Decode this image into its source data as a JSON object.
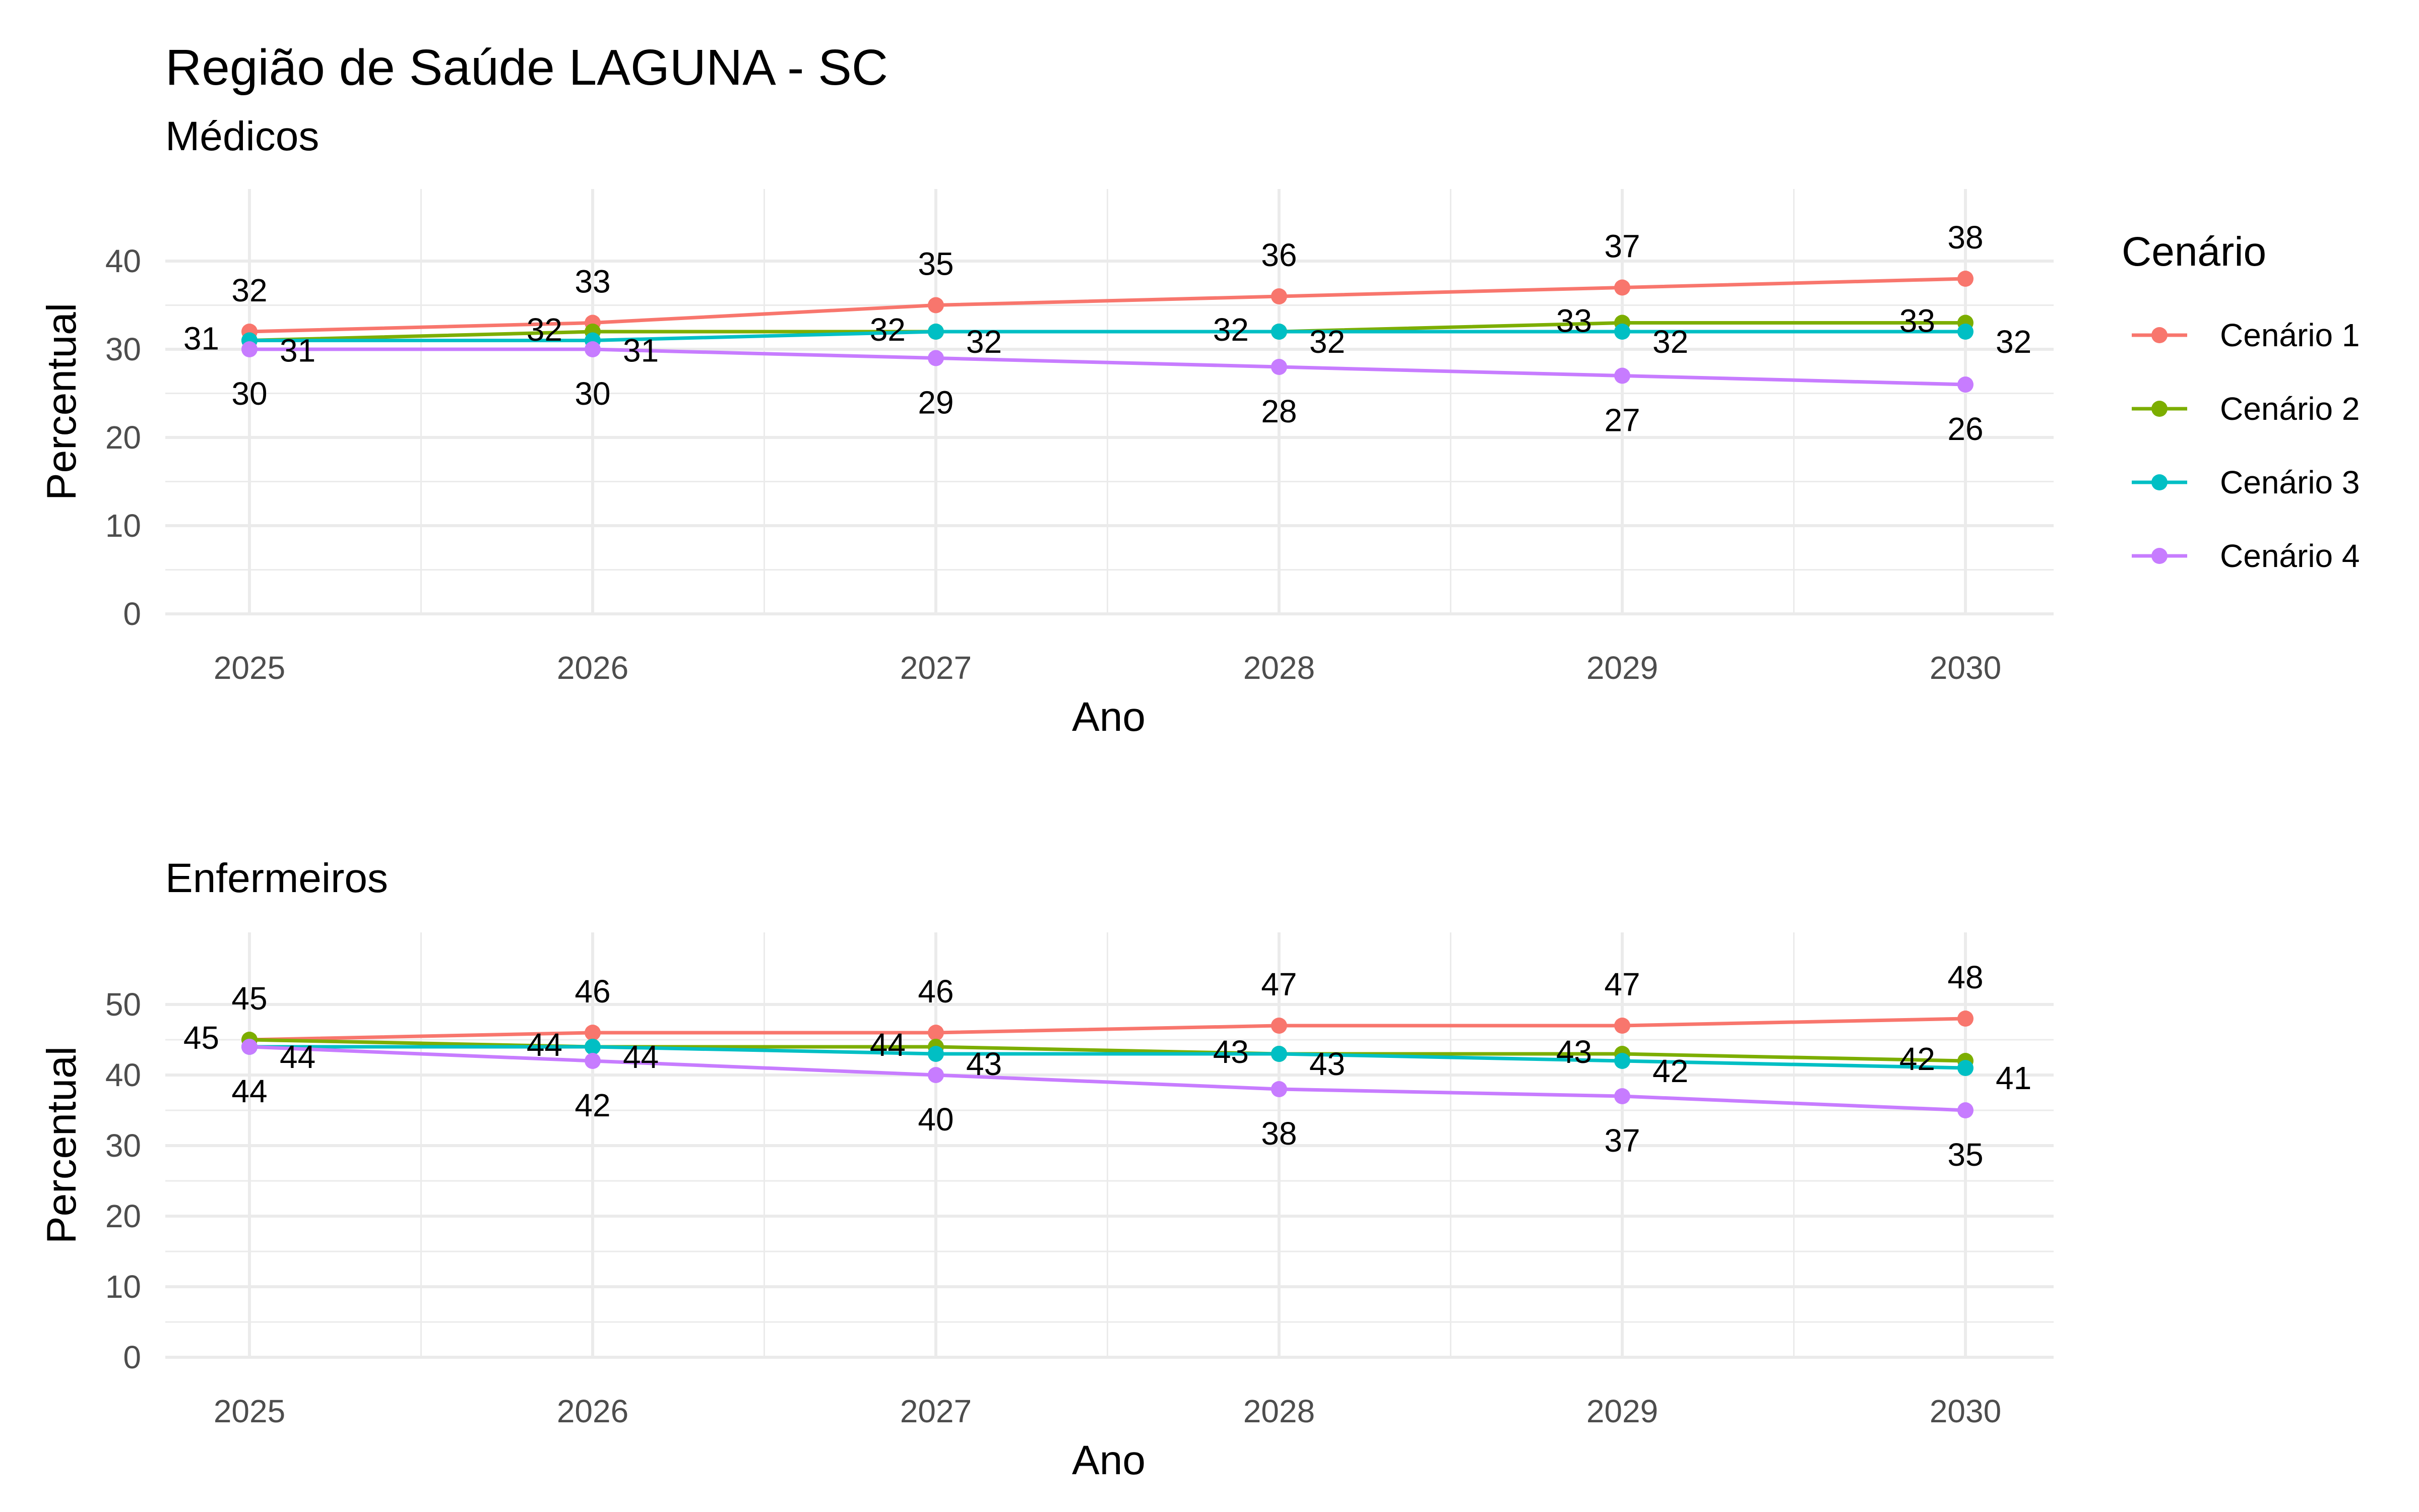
{
  "figure": {
    "title": "Região de Saúde LAGUNA - SC"
  },
  "legend": {
    "title": "Cenário",
    "entries": [
      {
        "label": "Cenário 1",
        "color": "#F8766D"
      },
      {
        "label": "Cenário 2",
        "color": "#7CAE00"
      },
      {
        "label": "Cenário 3",
        "color": "#00BFC4"
      },
      {
        "label": "Cenário 4",
        "color": "#C77CFF"
      }
    ]
  },
  "chart_data": [
    {
      "type": "line",
      "title": "Médicos",
      "xlabel": "Ano",
      "ylabel": "Percentual",
      "x": [
        "2025",
        "2026",
        "2027",
        "2028",
        "2029",
        "2030"
      ],
      "ylim": [
        0,
        45
      ],
      "yticks": [
        0,
        10,
        20,
        30,
        40
      ],
      "grid": true,
      "series": [
        {
          "name": "Cenário 1",
          "color": "#F8766D",
          "values": [
            32,
            33,
            35,
            36,
            37,
            38
          ],
          "labels": [
            "32",
            "33",
            "35",
            "36",
            "37",
            "38"
          ]
        },
        {
          "name": "Cenário 2",
          "color": "#7CAE00",
          "values": [
            31,
            32,
            32,
            32,
            33,
            33
          ],
          "labels": [
            "31",
            "32",
            "32",
            "32",
            "33",
            "33"
          ]
        },
        {
          "name": "Cenário 3",
          "color": "#00BFC4",
          "values": [
            31,
            31,
            32,
            32,
            32,
            32
          ],
          "labels": [
            "31",
            "31",
            "32",
            "32",
            "32",
            "32"
          ]
        },
        {
          "name": "Cenário 4",
          "color": "#C77CFF",
          "values": [
            30,
            30,
            29,
            28,
            27,
            26
          ],
          "labels": [
            "30",
            "30",
            "29",
            "28",
            "27",
            "26"
          ]
        }
      ]
    },
    {
      "type": "line",
      "title": "Enfermeiros",
      "xlabel": "Ano",
      "ylabel": "Percentual",
      "x": [
        "2025",
        "2026",
        "2027",
        "2028",
        "2029",
        "2030"
      ],
      "ylim": [
        0,
        55
      ],
      "yticks": [
        0,
        10,
        20,
        30,
        40,
        50
      ],
      "grid": true,
      "series": [
        {
          "name": "Cenário 1",
          "color": "#F8766D",
          "values": [
            45,
            46,
            46,
            47,
            47,
            48
          ],
          "labels": [
            "45",
            "46",
            "46",
            "47",
            "47",
            "48"
          ]
        },
        {
          "name": "Cenário 2",
          "color": "#7CAE00",
          "values": [
            45,
            44,
            44,
            43,
            43,
            42
          ],
          "labels": [
            "45",
            "44",
            "44",
            "43",
            "43",
            "42"
          ]
        },
        {
          "name": "Cenário 3",
          "color": "#00BFC4",
          "values": [
            44,
            44,
            43,
            43,
            42,
            41
          ],
          "labels": [
            "44",
            "44",
            "43",
            "43",
            "42",
            "41"
          ]
        },
        {
          "name": "Cenário 4",
          "color": "#C77CFF",
          "values": [
            44,
            42,
            40,
            38,
            37,
            35
          ],
          "labels": [
            "44",
            "42",
            "40",
            "38",
            "37",
            "35"
          ]
        }
      ]
    }
  ]
}
